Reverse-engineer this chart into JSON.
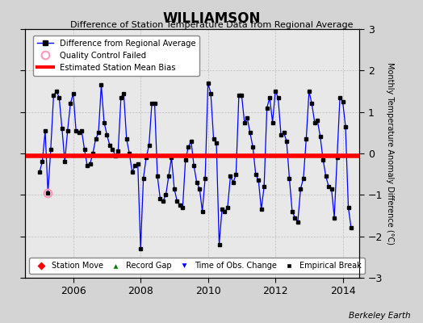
{
  "title": "WILLIAMSON",
  "subtitle": "Difference of Station Temperature Data from Regional Average",
  "ylabel_right": "Monthly Temperature Anomaly Difference (°C)",
  "xlim": [
    2004.58,
    2014.5
  ],
  "ylim": [
    -3,
    3
  ],
  "yticks": [
    -3,
    -2,
    -1,
    0,
    1,
    2,
    3
  ],
  "xticks": [
    2006,
    2008,
    2010,
    2012,
    2014
  ],
  "bias_value": -0.05,
  "background_color": "#d4d4d4",
  "plot_bg_color": "#e8e8e8",
  "line_color": "blue",
  "bias_color": "red",
  "marker_color": "black",
  "qc_fail_x": 2005.25,
  "qc_fail_y": -0.95,
  "footer_text": "Berkeley Earth",
  "times": [
    2005.0,
    2005.083,
    2005.167,
    2005.25,
    2005.333,
    2005.417,
    2005.5,
    2005.583,
    2005.667,
    2005.75,
    2005.833,
    2005.917,
    2006.0,
    2006.083,
    2006.167,
    2006.25,
    2006.333,
    2006.417,
    2006.5,
    2006.583,
    2006.667,
    2006.75,
    2006.833,
    2006.917,
    2007.0,
    2007.083,
    2007.167,
    2007.25,
    2007.333,
    2007.417,
    2007.5,
    2007.583,
    2007.667,
    2007.75,
    2007.833,
    2007.917,
    2008.0,
    2008.083,
    2008.167,
    2008.25,
    2008.333,
    2008.417,
    2008.5,
    2008.583,
    2008.667,
    2008.75,
    2008.833,
    2008.917,
    2009.0,
    2009.083,
    2009.167,
    2009.25,
    2009.333,
    2009.417,
    2009.5,
    2009.583,
    2009.667,
    2009.75,
    2009.833,
    2009.917,
    2010.0,
    2010.083,
    2010.167,
    2010.25,
    2010.333,
    2010.417,
    2010.5,
    2010.583,
    2010.667,
    2010.75,
    2010.833,
    2010.917,
    2011.0,
    2011.083,
    2011.167,
    2011.25,
    2011.333,
    2011.417,
    2011.5,
    2011.583,
    2011.667,
    2011.75,
    2011.833,
    2011.917,
    2012.0,
    2012.083,
    2012.167,
    2012.25,
    2012.333,
    2012.417,
    2012.5,
    2012.583,
    2012.667,
    2012.75,
    2012.833,
    2012.917,
    2013.0,
    2013.083,
    2013.167,
    2013.25,
    2013.333,
    2013.417,
    2013.5,
    2013.583,
    2013.667,
    2013.75,
    2013.833,
    2013.917,
    2014.0,
    2014.083,
    2014.167,
    2014.25
  ],
  "values": [
    -0.45,
    -0.2,
    0.55,
    -0.95,
    0.1,
    1.4,
    1.5,
    1.35,
    0.6,
    -0.2,
    0.55,
    1.2,
    1.45,
    0.55,
    0.5,
    0.55,
    0.1,
    -0.3,
    -0.25,
    0.0,
    0.35,
    0.5,
    1.65,
    0.75,
    0.45,
    0.2,
    0.1,
    -0.05,
    0.05,
    1.35,
    1.45,
    0.35,
    0.0,
    -0.45,
    -0.3,
    -0.25,
    -2.3,
    -0.6,
    -0.1,
    0.2,
    1.2,
    1.2,
    -0.55,
    -1.1,
    -1.15,
    -1.0,
    -0.55,
    -0.1,
    -0.85,
    -1.15,
    -1.25,
    -1.3,
    -0.15,
    0.15,
    0.3,
    -0.3,
    -0.7,
    -0.85,
    -1.4,
    -0.6,
    1.7,
    1.45,
    0.35,
    0.25,
    -2.2,
    -1.35,
    -1.4,
    -1.3,
    -0.55,
    -0.7,
    -0.5,
    1.4,
    1.4,
    0.75,
    0.85,
    0.5,
    0.15,
    -0.5,
    -0.65,
    -1.35,
    -0.8,
    1.1,
    1.35,
    0.75,
    1.5,
    1.35,
    0.45,
    0.5,
    0.3,
    -0.6,
    -1.4,
    -1.55,
    -1.65,
    -0.85,
    -0.6,
    0.35,
    1.5,
    1.2,
    0.75,
    0.8,
    0.4,
    -0.15,
    -0.55,
    -0.8,
    -0.85,
    -1.55,
    -0.1,
    1.35,
    1.25,
    0.65,
    -1.3,
    -1.8
  ]
}
